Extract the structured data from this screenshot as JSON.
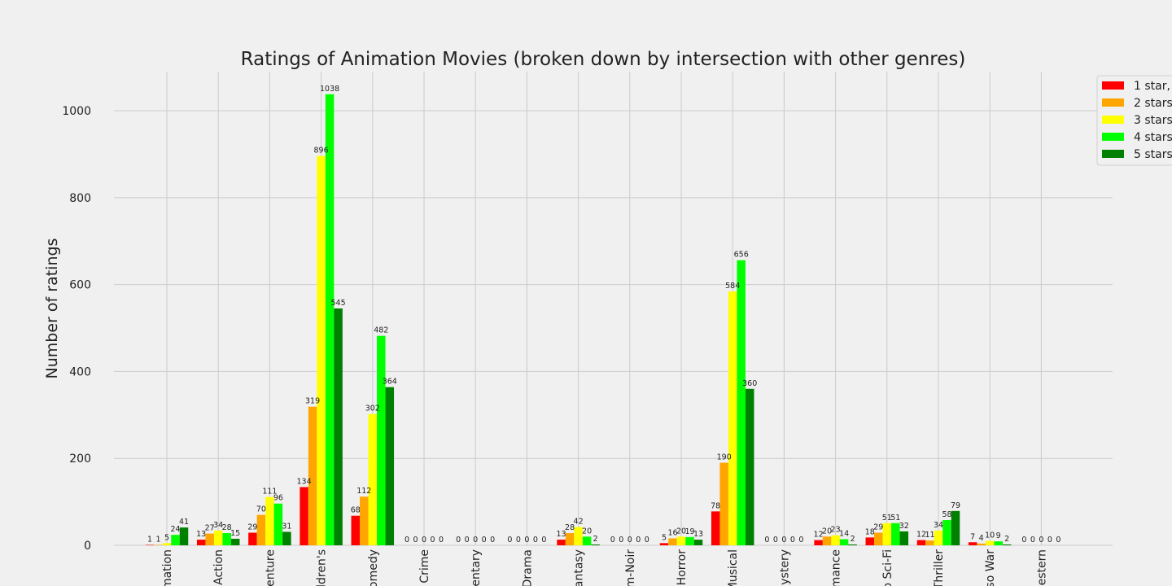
{
  "chart_data": {
    "type": "bar",
    "title": "Ratings of Animation Movies (broken down by intersection with other genres)",
    "xlabel": "",
    "ylabel": "Number of ratings",
    "ylim": [
      0,
      1090
    ],
    "yticks": [
      0,
      200,
      400,
      600,
      800,
      1000
    ],
    "grid": true,
    "legend_position": "top-right",
    "categories": [
      "mation",
      "Action",
      "venture",
      "ldren's",
      "omedy",
      "Crime",
      "entary",
      "Drama",
      "antasy",
      "m-Noir",
      "Horror",
      "Musical",
      "ystery",
      "mance",
      "o Sci-Fi",
      "Thriller",
      "so War",
      "estern"
    ],
    "series": [
      {
        "name": "1 star,",
        "color": "#ff0000",
        "values": [
          1,
          13,
          29,
          134,
          68,
          0,
          0,
          0,
          13,
          0,
          5,
          78,
          0,
          12,
          18,
          12,
          7,
          0
        ]
      },
      {
        "name": "2 stars",
        "color": "#ffa500",
        "values": [
          1,
          27,
          70,
          319,
          112,
          0,
          0,
          0,
          28,
          0,
          16,
          190,
          0,
          20,
          29,
          11,
          4,
          0
        ]
      },
      {
        "name": "3 stars",
        "color": "#ffff00",
        "values": [
          5,
          34,
          111,
          896,
          302,
          0,
          0,
          0,
          42,
          0,
          20,
          584,
          0,
          23,
          51,
          34,
          10,
          0
        ]
      },
      {
        "name": "4 stars",
        "color": "#00ff00",
        "values": [
          24,
          28,
          96,
          1038,
          482,
          0,
          0,
          0,
          20,
          0,
          19,
          656,
          0,
          14,
          51,
          58,
          9,
          0
        ]
      },
      {
        "name": "5 stars",
        "color": "#008000",
        "values": [
          41,
          15,
          31,
          545,
          364,
          0,
          0,
          0,
          2,
          0,
          13,
          360,
          0,
          2,
          32,
          79,
          2,
          0
        ]
      }
    ]
  }
}
